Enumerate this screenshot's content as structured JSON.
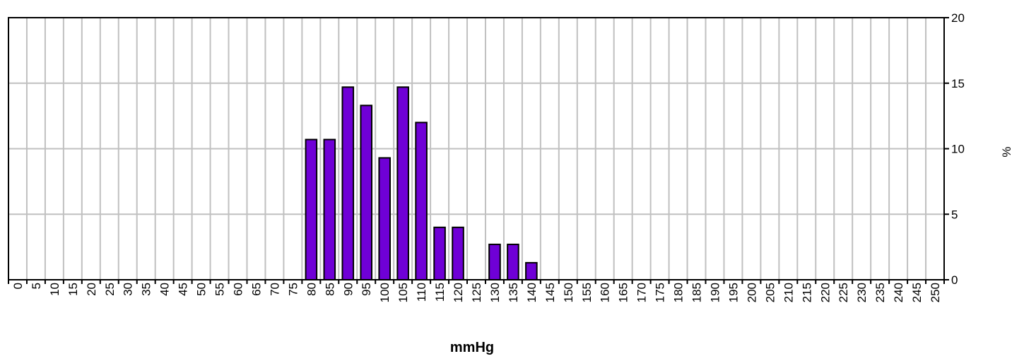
{
  "chart_data": {
    "type": "bar",
    "x_label": "mmHg",
    "y_label": "%",
    "categories": [
      "0",
      "5",
      "10",
      "15",
      "20",
      "25",
      "30",
      "35",
      "40",
      "45",
      "50",
      "55",
      "60",
      "65",
      "70",
      "75",
      "80",
      "85",
      "90",
      "95",
      "100",
      "105",
      "110",
      "115",
      "120",
      "125",
      "130",
      "135",
      "140",
      "145",
      "150",
      "155",
      "160",
      "165",
      "170",
      "175",
      "180",
      "185",
      "190",
      "195",
      "200",
      "205",
      "210",
      "215",
      "220",
      "225",
      "230",
      "235",
      "240",
      "245",
      "250"
    ],
    "values": [
      0,
      0,
      0,
      0,
      0,
      0,
      0,
      0,
      0,
      0,
      0,
      0,
      0,
      0,
      0,
      0,
      10.7,
      10.7,
      14.7,
      13.3,
      9.3,
      14.7,
      12.0,
      4.0,
      4.0,
      0,
      2.7,
      2.7,
      1.3,
      0,
      0,
      0,
      0,
      0,
      0,
      0,
      0,
      0,
      0,
      0,
      0,
      0,
      0,
      0,
      0,
      0,
      0,
      0,
      0,
      0,
      0
    ],
    "color": "#6f00d6",
    "ylim": [
      0,
      20
    ],
    "yticks": [
      0,
      5,
      10,
      15,
      20
    ],
    "grid": true,
    "y_axis_side": "right"
  }
}
